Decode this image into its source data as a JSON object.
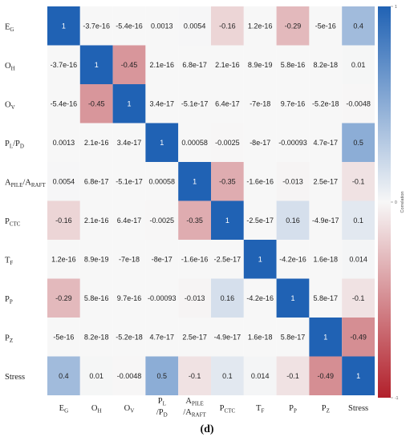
{
  "chart_data": {
    "type": "heatmap",
    "variables": [
      {
        "main": "E",
        "sub": "G"
      },
      {
        "main": "O",
        "sub": "H"
      },
      {
        "main": "O",
        "sub": "V"
      },
      {
        "main": "P",
        "sub": "L",
        "rest": "/P",
        "sub2": "D"
      },
      {
        "main": "A",
        "sub": "PILE",
        "rest": "/A",
        "sub2": "RAFT"
      },
      {
        "main": "P",
        "sub": "CTC"
      },
      {
        "main": "T",
        "sub": "F"
      },
      {
        "main": "P",
        "sub": "P"
      },
      {
        "main": "P",
        "sub": "Z"
      },
      {
        "main": "Stress"
      }
    ],
    "matrix": [
      [
        "1",
        "-3.7e-16",
        "-5.4e-16",
        "0.0013",
        "0.0054",
        "-0.16",
        "1.2e-16",
        "-0.29",
        "-5e-16",
        "0.4"
      ],
      [
        "-3.7e-16",
        "1",
        "-0.45",
        "2.1e-16",
        "6.8e-17",
        "2.1e-16",
        "8.9e-19",
        "5.8e-16",
        "8.2e-18",
        "0.01"
      ],
      [
        "-5.4e-16",
        "-0.45",
        "1",
        "3.4e-17",
        "-5.1e-17",
        "6.4e-17",
        "-7e-18",
        "9.7e-16",
        "-5.2e-18",
        "-0.0048"
      ],
      [
        "0.0013",
        "2.1e-16",
        "3.4e-17",
        "1",
        "0.00058",
        "-0.0025",
        "-8e-17",
        "-0.00093",
        "4.7e-17",
        "0.5"
      ],
      [
        "0.0054",
        "6.8e-17",
        "-5.1e-17",
        "0.00058",
        "1",
        "-0.35",
        "-1.6e-16",
        "-0.013",
        "2.5e-17",
        "-0.1"
      ],
      [
        "-0.16",
        "2.1e-16",
        "6.4e-17",
        "-0.0025",
        "-0.35",
        "1",
        "-2.5e-17",
        "0.16",
        "-4.9e-17",
        "0.1"
      ],
      [
        "1.2e-16",
        "8.9e-19",
        "-7e-18",
        "-8e-17",
        "-1.6e-16",
        "-2.5e-17",
        "1",
        "-4.2e-16",
        "1.6e-18",
        "0.014"
      ],
      [
        "-0.29",
        "5.8e-16",
        "9.7e-16",
        "-0.00093",
        "-0.013",
        "0.16",
        "-4.2e-16",
        "1",
        "5.8e-17",
        "-0.1"
      ],
      [
        "-5e-16",
        "8.2e-18",
        "-5.2e-18",
        "4.7e-17",
        "2.5e-17",
        "-4.9e-17",
        "1.6e-18",
        "5.8e-17",
        "1",
        "-0.49"
      ],
      [
        "0.4",
        "0.01",
        "-0.0048",
        "0.5",
        "-0.1",
        "0.1",
        "0.014",
        "-0.1",
        "-0.49",
        "1"
      ]
    ],
    "colorbar": {
      "label": "Correlation",
      "range": [
        -1,
        1
      ],
      "ticks": [
        "1",
        "0",
        "-1"
      ],
      "colors": {
        "negative": "#b2202b",
        "neutral": "#f7f7f7",
        "positive": "#2062b4"
      }
    },
    "grid": false
  },
  "panel_label": "(d)"
}
